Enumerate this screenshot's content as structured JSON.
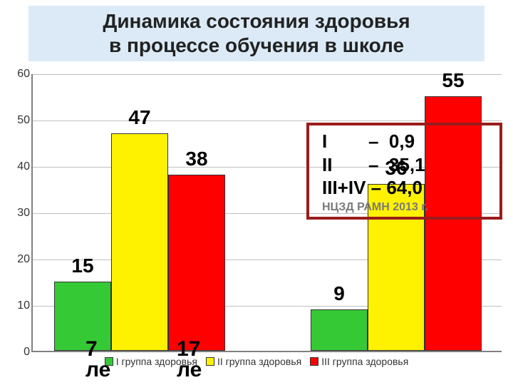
{
  "title": "Динамика состояния здоровья\nв процессе обучения в школе",
  "chart": {
    "type": "bar",
    "ylim": [
      0,
      60
    ],
    "ytick_step": 10,
    "grid_color": "#bfbfbf",
    "axis_color": "#808080",
    "background_color": "#ffffff",
    "bar_border_color": "#333333",
    "groups": [
      {
        "bars": [
          {
            "value": 15,
            "color": "#36c936",
            "label": "15"
          },
          {
            "value": 47,
            "color": "#fff200",
            "label": "47"
          },
          {
            "value": 38,
            "color": "#ff0000",
            "label": "38"
          }
        ]
      },
      {
        "bars": [
          {
            "value": 9,
            "color": "#36c936",
            "label": "9"
          },
          {
            "value": 36,
            "color": "#fff200",
            "label": "36"
          },
          {
            "value": 55,
            "color": "#ff0000",
            "label": "55"
          }
        ]
      }
    ],
    "legend": [
      {
        "swatch": "#36c936",
        "label": "I группа здоровья"
      },
      {
        "swatch": "#fff200",
        "label": "II группа здоровья"
      },
      {
        "swatch": "#ff0000",
        "label": "III группа здоровья"
      }
    ]
  },
  "annotation_box": {
    "lines": [
      "I        –  0,9",
      "II       –  35,1",
      "III+IV – 64,0"
    ],
    "sub": "НЦЗД РАМН 2013 г.",
    "border_color": "#9b1c1c"
  },
  "bottom_cut_labels": {
    "left": "7\nле",
    "right": "17\nле"
  }
}
